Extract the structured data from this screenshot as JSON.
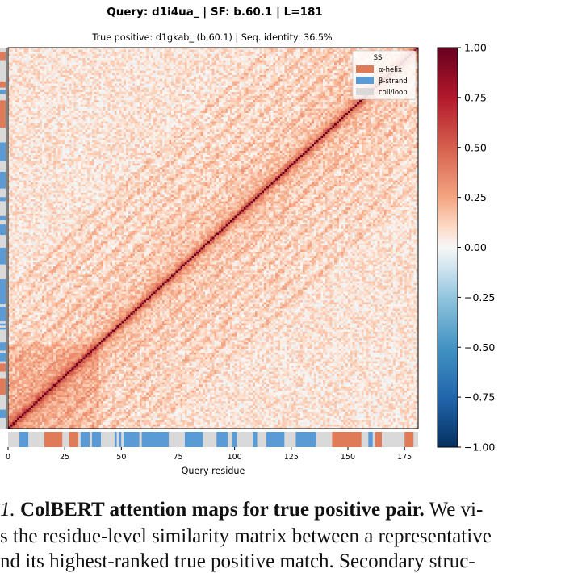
{
  "chart_data": {
    "type": "heatmap",
    "title": "Query: d1i4ua_  |  SF: b.60.1  |  L=181",
    "subtitle": "True positive: d1gkab_  (b.60.1)  |  Seq. identity: 36.5%",
    "xlabel": "Query residue",
    "length": 181,
    "xlim": [
      0,
      181
    ],
    "xticks": [
      "0",
      "25",
      "50",
      "75",
      "100",
      "125",
      "150",
      "175"
    ],
    "colorbar": {
      "colormap": "RdBu_r",
      "vmin": -1.0,
      "vmax": 1.0,
      "ticks": [
        "1.00",
        "0.75",
        "0.50",
        "0.25",
        "0.00",
        "−0.25",
        "−0.50",
        "−0.75",
        "−1.00"
      ]
    },
    "legend": {
      "title": "SS",
      "placement": "top-right",
      "entries": [
        {
          "label": "α-helix",
          "color": "#e07b5a"
        },
        {
          "label": "β-strand",
          "color": "#5b9bd5"
        },
        {
          "label": "coil/loop",
          "color": "#d9d9d9"
        }
      ]
    },
    "diagonal_value": 1.0,
    "secondary_structure_track": [
      {
        "type": "coil",
        "start": 0,
        "end": 5
      },
      {
        "type": "strand",
        "start": 5,
        "end": 9
      },
      {
        "type": "coil",
        "start": 9,
        "end": 16
      },
      {
        "type": "helix",
        "start": 16,
        "end": 24
      },
      {
        "type": "coil",
        "start": 24,
        "end": 27
      },
      {
        "type": "helix",
        "start": 27,
        "end": 31
      },
      {
        "type": "coil",
        "start": 31,
        "end": 32
      },
      {
        "type": "strand",
        "start": 32,
        "end": 36
      },
      {
        "type": "coil",
        "start": 36,
        "end": 37
      },
      {
        "type": "strand",
        "start": 37,
        "end": 41
      },
      {
        "type": "coil",
        "start": 41,
        "end": 47
      },
      {
        "type": "strand",
        "start": 47,
        "end": 48
      },
      {
        "type": "coil",
        "start": 48,
        "end": 49
      },
      {
        "type": "strand",
        "start": 49,
        "end": 50
      },
      {
        "type": "coil",
        "start": 50,
        "end": 51
      },
      {
        "type": "strand",
        "start": 51,
        "end": 58
      },
      {
        "type": "coil",
        "start": 58,
        "end": 59
      },
      {
        "type": "strand",
        "start": 59,
        "end": 71
      },
      {
        "type": "coil",
        "start": 71,
        "end": 78
      },
      {
        "type": "strand",
        "start": 78,
        "end": 86
      },
      {
        "type": "coil",
        "start": 86,
        "end": 92
      },
      {
        "type": "strand",
        "start": 92,
        "end": 97
      },
      {
        "type": "coil",
        "start": 97,
        "end": 99
      },
      {
        "type": "strand",
        "start": 99,
        "end": 101
      },
      {
        "type": "coil",
        "start": 101,
        "end": 108
      },
      {
        "type": "strand",
        "start": 108,
        "end": 110
      },
      {
        "type": "coil",
        "start": 110,
        "end": 114
      },
      {
        "type": "strand",
        "start": 114,
        "end": 122
      },
      {
        "type": "coil",
        "start": 122,
        "end": 127
      },
      {
        "type": "strand",
        "start": 127,
        "end": 136
      },
      {
        "type": "coil",
        "start": 136,
        "end": 143
      },
      {
        "type": "helix",
        "start": 143,
        "end": 156
      },
      {
        "type": "coil",
        "start": 156,
        "end": 159
      },
      {
        "type": "strand",
        "start": 159,
        "end": 161
      },
      {
        "type": "coil",
        "start": 161,
        "end": 162
      },
      {
        "type": "helix",
        "start": 162,
        "end": 165
      },
      {
        "type": "coil",
        "start": 165,
        "end": 175
      },
      {
        "type": "helix",
        "start": 175,
        "end": 179
      },
      {
        "type": "coil",
        "start": 179,
        "end": 181
      }
    ]
  },
  "caption": {
    "line1_prefix": "1.",
    "line1_bold": "ColBERT attention maps for true positive pair.",
    "line1_rest": "We vi-",
    "line2": "s the residue-level similarity matrix between a representative",
    "line3": "nd its highest-ranked true positive match. Secondary struc-"
  }
}
